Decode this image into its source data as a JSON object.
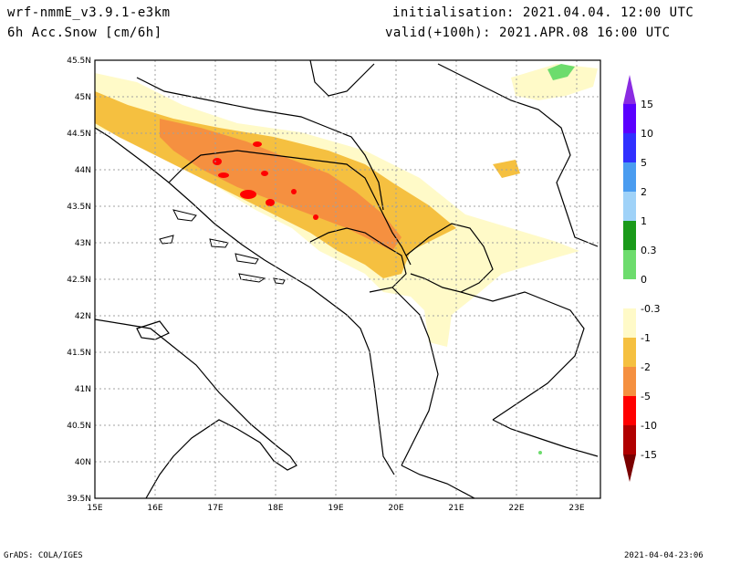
{
  "header": {
    "model": "wrf-nmmE_v3.9.1-e3km",
    "variable": "6h Acc.Snow [cm/6h]",
    "init": "initialisation: 2021.04.04.  12:00 UTC",
    "valid": "valid(+100h): 2021.APR.08 16:00 UTC"
  },
  "axes": {
    "lat_labels": [
      "45.5N",
      "45N",
      "44.5N",
      "44N",
      "43.5N",
      "43N",
      "42.5N",
      "42N",
      "41.5N",
      "41N",
      "40.5N",
      "40N",
      "39.5N"
    ],
    "lon_labels": [
      "15E",
      "16E",
      "17E",
      "18E",
      "19E",
      "20E",
      "21E",
      "22E",
      "23E"
    ]
  },
  "colorbar": {
    "labels": [
      "15",
      "10",
      "5",
      "2",
      "1",
      "0.3",
      "0",
      "-0.3",
      "-1",
      "-2",
      "-5",
      "-10",
      "-15"
    ],
    "colors": [
      "#5a00ff",
      "#3030ff",
      "#4a9cf0",
      "#9fd2f8",
      "#1a9a1a",
      "#6ddc6d",
      "#ffffff",
      "#fffac8",
      "#f5c040",
      "#f59040",
      "#ff0000",
      "#b00000",
      "#7a0000"
    ]
  },
  "footer": {
    "left": "GrADS: COLA/IGES",
    "right": "2021-04-04-23:06"
  }
}
